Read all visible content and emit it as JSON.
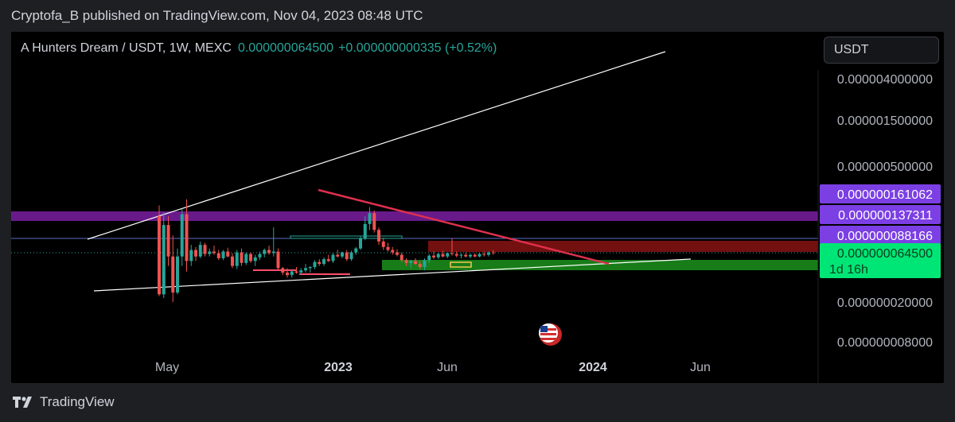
{
  "publish_line": "Cryptofa_B published on TradingView.com, Nov 04, 2023 08:48 UTC",
  "header": {
    "symbol": "A Hunters Dream / USDT, 1W, MEXC",
    "price": "0.000000064500",
    "change": "+0.000000000335 (+0.52%)"
  },
  "currency": "USDT",
  "footer": {
    "brand": "TradingView"
  },
  "icons": {
    "flag": "us-flag-icon",
    "logo": "tradingview-logo-icon"
  },
  "colors": {
    "up": "#26a69a",
    "down": "#ef5350",
    "purple": "#7b1fa2",
    "green_label": "#00e676",
    "red_zone": "#7f1212",
    "green_zone": "#1b8a1b",
    "trendline_red": "#e0304e"
  },
  "chart_data": {
    "type": "candlestick",
    "y_scale": "log",
    "y_ticks": [
      "0.000004000000",
      "0.000001500000",
      "0.000000500000",
      "0.000000020000",
      "0.000000008000"
    ],
    "x_ticks": [
      "May",
      "2023",
      "Jun",
      "2024",
      "Jun"
    ],
    "price_labels": [
      {
        "text": "0.000000161062",
        "value": 1.61062e-07,
        "color": "#7b3fe4"
      },
      {
        "text": "0.000000137311",
        "value": 1.37311e-07,
        "color": "#7b3fe4"
      },
      {
        "text": "0.000000088166",
        "value": 8.8166e-08,
        "color": "#7b3fe4"
      },
      {
        "text": "0.000000064500",
        "value": 6.45e-08,
        "color": "#00e676"
      }
    ],
    "countdown": "1d 16h",
    "candles": [
      {
        "date": "2022-04-25",
        "o": 1.3e-07,
        "h": 1.6e-07,
        "l": 2.8e-08,
        "c": 2.9e-08
      },
      {
        "date": "2022-05-02",
        "o": 2.9e-08,
        "h": 1.4e-07,
        "l": 2.7e-08,
        "c": 1.1e-07
      },
      {
        "date": "2022-05-09",
        "o": 1.1e-07,
        "h": 1.3e-07,
        "l": 5e-08,
        "c": 6e-08
      },
      {
        "date": "2022-05-16",
        "o": 6e-08,
        "h": 9e-08,
        "l": 2.5e-08,
        "c": 3e-08
      },
      {
        "date": "2022-05-23",
        "o": 3e-08,
        "h": 7e-08,
        "l": 2.9e-08,
        "c": 6e-08
      },
      {
        "date": "2022-05-30",
        "o": 6e-08,
        "h": 1.5e-07,
        "l": 5e-08,
        "c": 1.35e-07
      },
      {
        "date": "2022-06-06",
        "o": 1.35e-07,
        "h": 1.8e-07,
        "l": 4.5e-08,
        "c": 5.5e-08
      },
      {
        "date": "2022-06-13",
        "o": 5.5e-08,
        "h": 7.5e-08,
        "l": 5e-08,
        "c": 6.8e-08
      },
      {
        "date": "2022-06-20",
        "o": 6.8e-08,
        "h": 7.2e-08,
        "l": 5.5e-08,
        "c": 6e-08
      },
      {
        "date": "2022-06-27",
        "o": 6e-08,
        "h": 8e-08,
        "l": 5.8e-08,
        "c": 7.5e-08
      },
      {
        "date": "2022-07-04",
        "o": 7.5e-08,
        "h": 7.8e-08,
        "l": 6e-08,
        "c": 6.3e-08
      },
      {
        "date": "2022-07-11",
        "o": 6.3e-08,
        "h": 7e-08,
        "l": 6e-08,
        "c": 6.6e-08
      },
      {
        "date": "2022-07-18",
        "o": 6.6e-08,
        "h": 7.4e-08,
        "l": 6.2e-08,
        "c": 6.4e-08
      },
      {
        "date": "2022-07-25",
        "o": 6.4e-08,
        "h": 6.8e-08,
        "l": 5.6e-08,
        "c": 5.8e-08
      },
      {
        "date": "2022-08-01",
        "o": 5.8e-08,
        "h": 6.8e-08,
        "l": 5.6e-08,
        "c": 6.6e-08
      },
      {
        "date": "2022-08-08",
        "o": 6.6e-08,
        "h": 7.1e-08,
        "l": 5.9e-08,
        "c": 6e-08
      },
      {
        "date": "2022-08-15",
        "o": 6e-08,
        "h": 6.4e-08,
        "l": 4.8e-08,
        "c": 5e-08
      },
      {
        "date": "2022-08-22",
        "o": 5e-08,
        "h": 6.8e-08,
        "l": 4.7e-08,
        "c": 6.5e-08
      },
      {
        "date": "2022-08-29",
        "o": 6.5e-08,
        "h": 7e-08,
        "l": 5e-08,
        "c": 5.3e-08
      },
      {
        "date": "2022-09-05",
        "o": 5.3e-08,
        "h": 6.5e-08,
        "l": 5.1e-08,
        "c": 6.3e-08
      },
      {
        "date": "2022-09-12",
        "o": 6.3e-08,
        "h": 6.5e-08,
        "l": 5.3e-08,
        "c": 5.5e-08
      },
      {
        "date": "2022-09-19",
        "o": 5.5e-08,
        "h": 6.2e-08,
        "l": 5e-08,
        "c": 5.9e-08
      },
      {
        "date": "2022-09-26",
        "o": 5.9e-08,
        "h": 6.6e-08,
        "l": 5.6e-08,
        "c": 6.3e-08
      },
      {
        "date": "2022-10-03",
        "o": 6.3e-08,
        "h": 7e-08,
        "l": 5.9e-08,
        "c": 6.8e-08
      },
      {
        "date": "2022-10-10",
        "o": 6.8e-08,
        "h": 7.4e-08,
        "l": 6.2e-08,
        "c": 6.4e-08
      },
      {
        "date": "2022-10-17",
        "o": 6.4e-08,
        "h": 1.05e-07,
        "l": 6e-08,
        "c": 6.6e-08
      },
      {
        "date": "2022-10-24",
        "o": 6.6e-08,
        "h": 7e-08,
        "l": 4.6e-08,
        "c": 4.8e-08
      },
      {
        "date": "2022-10-31",
        "o": 4.8e-08,
        "h": 4.9e-08,
        "l": 4.2e-08,
        "c": 4.4e-08
      },
      {
        "date": "2022-11-07",
        "o": 4.4e-08,
        "h": 4.8e-08,
        "l": 4e-08,
        "c": 4.2e-08
      },
      {
        "date": "2022-11-14",
        "o": 4.2e-08,
        "h": 4.7e-08,
        "l": 4e-08,
        "c": 4.5e-08
      },
      {
        "date": "2022-11-21",
        "o": 4.5e-08,
        "h": 4.9e-08,
        "l": 4.3e-08,
        "c": 4.4e-08
      },
      {
        "date": "2022-11-28",
        "o": 4.4e-08,
        "h": 4.8e-08,
        "l": 4.2e-08,
        "c": 4.6e-08
      },
      {
        "date": "2022-12-05",
        "o": 4.6e-08,
        "h": 5.2e-08,
        "l": 4.4e-08,
        "c": 4.8e-08
      },
      {
        "date": "2022-12-12",
        "o": 4.8e-08,
        "h": 5e-08,
        "l": 4.4e-08,
        "c": 4.9e-08
      },
      {
        "date": "2022-12-19",
        "o": 4.9e-08,
        "h": 5.6e-08,
        "l": 4.7e-08,
        "c": 5.4e-08
      },
      {
        "date": "2022-12-26",
        "o": 5.4e-08,
        "h": 5.7e-08,
        "l": 5e-08,
        "c": 5.2e-08
      },
      {
        "date": "2023-01-02",
        "o": 5.2e-08,
        "h": 5.9e-08,
        "l": 5e-08,
        "c": 5.7e-08
      },
      {
        "date": "2023-01-09",
        "o": 5.7e-08,
        "h": 6.2e-08,
        "l": 5.4e-08,
        "c": 5.5e-08
      },
      {
        "date": "2023-01-16",
        "o": 5.5e-08,
        "h": 6.4e-08,
        "l": 5.3e-08,
        "c": 6.2e-08
      },
      {
        "date": "2023-01-23",
        "o": 6.2e-08,
        "h": 6.8e-08,
        "l": 5.9e-08,
        "c": 6e-08
      },
      {
        "date": "2023-01-30",
        "o": 6e-08,
        "h": 6.6e-08,
        "l": 5.8e-08,
        "c": 6.5e-08
      },
      {
        "date": "2023-02-06",
        "o": 6.5e-08,
        "h": 6.8e-08,
        "l": 5.5e-08,
        "c": 5.7e-08
      },
      {
        "date": "2023-02-13",
        "o": 5.7e-08,
        "h": 6.7e-08,
        "l": 5.5e-08,
        "c": 6.5e-08
      },
      {
        "date": "2023-02-20",
        "o": 6.5e-08,
        "h": 7.2e-08,
        "l": 6.2e-08,
        "c": 7e-08
      },
      {
        "date": "2023-02-27",
        "o": 7e-08,
        "h": 8.8e-08,
        "l": 6.8e-08,
        "c": 8.5e-08
      },
      {
        "date": "2023-03-06",
        "o": 8.5e-08,
        "h": 1.3e-07,
        "l": 8.2e-08,
        "c": 1.12e-07
      },
      {
        "date": "2023-03-13",
        "o": 1.12e-07,
        "h": 1.55e-07,
        "l": 1e-07,
        "c": 1.38e-07
      },
      {
        "date": "2023-03-20",
        "o": 1.38e-07,
        "h": 1.45e-07,
        "l": 9.5e-08,
        "c": 1e-07
      },
      {
        "date": "2023-03-27",
        "o": 1e-07,
        "h": 1.05e-07,
        "l": 7.5e-08,
        "c": 8e-08
      },
      {
        "date": "2023-04-03",
        "o": 8e-08,
        "h": 8.6e-08,
        "l": 6.8e-08,
        "c": 7.2e-08
      },
      {
        "date": "2023-04-10",
        "o": 7.2e-08,
        "h": 7.8e-08,
        "l": 6.6e-08,
        "c": 6.8e-08
      },
      {
        "date": "2023-04-17",
        "o": 6.8e-08,
        "h": 7.2e-08,
        "l": 6.2e-08,
        "c": 6.5e-08
      },
      {
        "date": "2023-04-24",
        "o": 6.5e-08,
        "h": 6.9e-08,
        "l": 6e-08,
        "c": 6.2e-08
      },
      {
        "date": "2023-05-01",
        "o": 6.2e-08,
        "h": 6.5e-08,
        "l": 5.4e-08,
        "c": 5.6e-08
      },
      {
        "date": "2023-05-08",
        "o": 5.6e-08,
        "h": 5.8e-08,
        "l": 5e-08,
        "c": 5.3e-08
      },
      {
        "date": "2023-05-15",
        "o": 5.3e-08,
        "h": 5.6e-08,
        "l": 4.8e-08,
        "c": 5.5e-08
      },
      {
        "date": "2023-05-22",
        "o": 5.5e-08,
        "h": 5.8e-08,
        "l": 5.1e-08,
        "c": 5.2e-08
      },
      {
        "date": "2023-05-29",
        "o": 5.2e-08,
        "h": 5.5e-08,
        "l": 4.7e-08,
        "c": 4.9e-08
      },
      {
        "date": "2023-06-05",
        "o": 4.9e-08,
        "h": 5.8e-08,
        "l": 4.6e-08,
        "c": 5.6e-08
      },
      {
        "date": "2023-06-12",
        "o": 5.6e-08,
        "h": 6.3e-08,
        "l": 5.3e-08,
        "c": 6.1e-08
      },
      {
        "date": "2023-06-19",
        "o": 6.1e-08,
        "h": 6.6e-08,
        "l": 5.7e-08,
        "c": 5.9e-08
      },
      {
        "date": "2023-06-26",
        "o": 5.9e-08,
        "h": 6.5e-08,
        "l": 5.7e-08,
        "c": 6.3e-08
      },
      {
        "date": "2023-07-03",
        "o": 6.3e-08,
        "h": 6.7e-08,
        "l": 5.9e-08,
        "c": 6e-08
      },
      {
        "date": "2023-07-10",
        "o": 6e-08,
        "h": 6.5e-08,
        "l": 5.8e-08,
        "c": 6.4e-08
      },
      {
        "date": "2023-07-17",
        "o": 6.4e-08,
        "h": 8.5e-08,
        "l": 6.1e-08,
        "c": 6.3e-08
      },
      {
        "date": "2023-07-24",
        "o": 6.3e-08,
        "h": 6.6e-08,
        "l": 5.9e-08,
        "c": 6.1e-08
      },
      {
        "date": "2023-07-31",
        "o": 6.1e-08,
        "h": 6.4e-08,
        "l": 5.8e-08,
        "c": 6.2e-08
      },
      {
        "date": "2023-08-07",
        "o": 6.2e-08,
        "h": 6.5e-08,
        "l": 5.9e-08,
        "c": 6e-08
      },
      {
        "date": "2023-08-14",
        "o": 6e-08,
        "h": 6.3e-08,
        "l": 5.8e-08,
        "c": 6.2e-08
      },
      {
        "date": "2023-08-21",
        "o": 6.2e-08,
        "h": 6.4e-08,
        "l": 5.9e-08,
        "c": 6e-08
      },
      {
        "date": "2023-08-28",
        "o": 6e-08,
        "h": 6.4e-08,
        "l": 5.9e-08,
        "c": 6.3e-08
      },
      {
        "date": "2023-09-04",
        "o": 6.3e-08,
        "h": 6.6e-08,
        "l": 6e-08,
        "c": 6.2e-08
      },
      {
        "date": "2023-09-11",
        "o": 6.2e-08,
        "h": 6.6e-08,
        "l": 6e-08,
        "c": 6.5e-08
      },
      {
        "date": "2023-09-18",
        "o": 6.5e-08,
        "h": 6.8e-08,
        "l": 6.2e-08,
        "c": 6.45e-08
      }
    ]
  }
}
